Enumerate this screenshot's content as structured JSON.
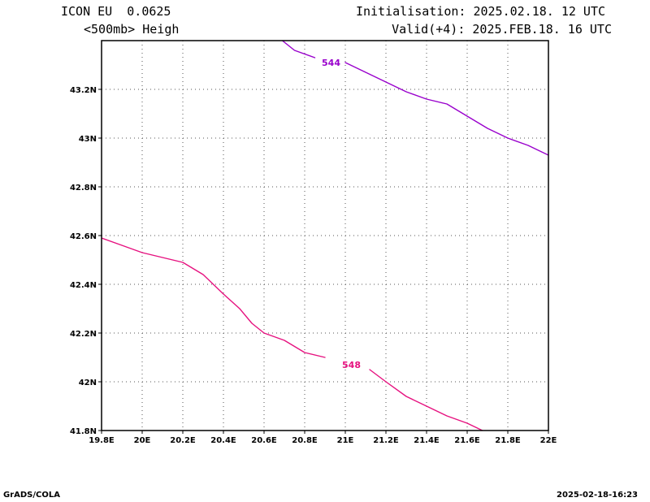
{
  "header": {
    "model": "ICON EU  0.0625",
    "field": "<500mb> Heigh",
    "init": "Initialisation: 2025.02.18. 12 UTC",
    "valid": "Valid(+4): 2025.FEB.18. 16 UTC"
  },
  "footer": {
    "left": "GrADS/COLA",
    "right": "2025-02-18-16:23"
  },
  "colors": {
    "contour_544": "#9900cc",
    "contour_548": "#e6117f",
    "grid": "#555555",
    "frame": "#000000"
  },
  "chart_data": {
    "type": "line",
    "grid": true,
    "xlim": [
      19.8,
      22.0
    ],
    "ylim": [
      41.8,
      43.4
    ],
    "x_ticks": [
      19.8,
      20.0,
      20.2,
      20.4,
      20.6,
      20.8,
      21.0,
      21.2,
      21.4,
      21.6,
      21.8,
      22.0
    ],
    "x_tick_labels": [
      "19.8E",
      "20E",
      "20.2E",
      "20.4E",
      "20.6E",
      "20.8E",
      "21E",
      "21.2E",
      "21.4E",
      "21.6E",
      "21.8E",
      "22E"
    ],
    "y_ticks": [
      41.8,
      42.0,
      42.2,
      42.4,
      42.6,
      42.8,
      43.0,
      43.2
    ],
    "y_tick_labels": [
      "41.8N",
      "42N",
      "42.2N",
      "42.4N",
      "42.6N",
      "42.8N",
      "43N",
      "43.2N"
    ],
    "series": [
      {
        "name": "544",
        "color": "#9900cc",
        "label_at": [
          20.93,
          43.31
        ],
        "points": [
          [
            20.69,
            43.4
          ],
          [
            20.75,
            43.36
          ],
          [
            20.85,
            43.33
          ],
          [
            20.93,
            43.31
          ],
          [
            21.0,
            43.31
          ],
          [
            21.1,
            43.27
          ],
          [
            21.2,
            43.23
          ],
          [
            21.3,
            43.19
          ],
          [
            21.4,
            43.16
          ],
          [
            21.5,
            43.14
          ],
          [
            21.6,
            43.09
          ],
          [
            21.7,
            43.04
          ],
          [
            21.8,
            43.0
          ],
          [
            21.9,
            42.97
          ],
          [
            22.0,
            42.93
          ]
        ]
      },
      {
        "name": "548",
        "color": "#e6117f",
        "label_at": [
          21.03,
          42.07
        ],
        "points": [
          [
            19.8,
            42.59
          ],
          [
            19.9,
            42.56
          ],
          [
            20.0,
            42.53
          ],
          [
            20.1,
            42.51
          ],
          [
            20.2,
            42.49
          ],
          [
            20.3,
            42.44
          ],
          [
            20.4,
            42.36
          ],
          [
            20.48,
            42.3
          ],
          [
            20.54,
            42.24
          ],
          [
            20.6,
            42.2
          ],
          [
            20.7,
            42.17
          ],
          [
            20.8,
            42.12
          ],
          [
            20.9,
            42.1
          ],
          [
            21.0,
            42.07
          ],
          [
            21.12,
            42.05
          ],
          [
            21.2,
            42.0
          ],
          [
            21.3,
            41.94
          ],
          [
            21.4,
            41.9
          ],
          [
            21.5,
            41.86
          ],
          [
            21.6,
            41.83
          ],
          [
            21.7,
            41.79
          ]
        ]
      }
    ]
  }
}
